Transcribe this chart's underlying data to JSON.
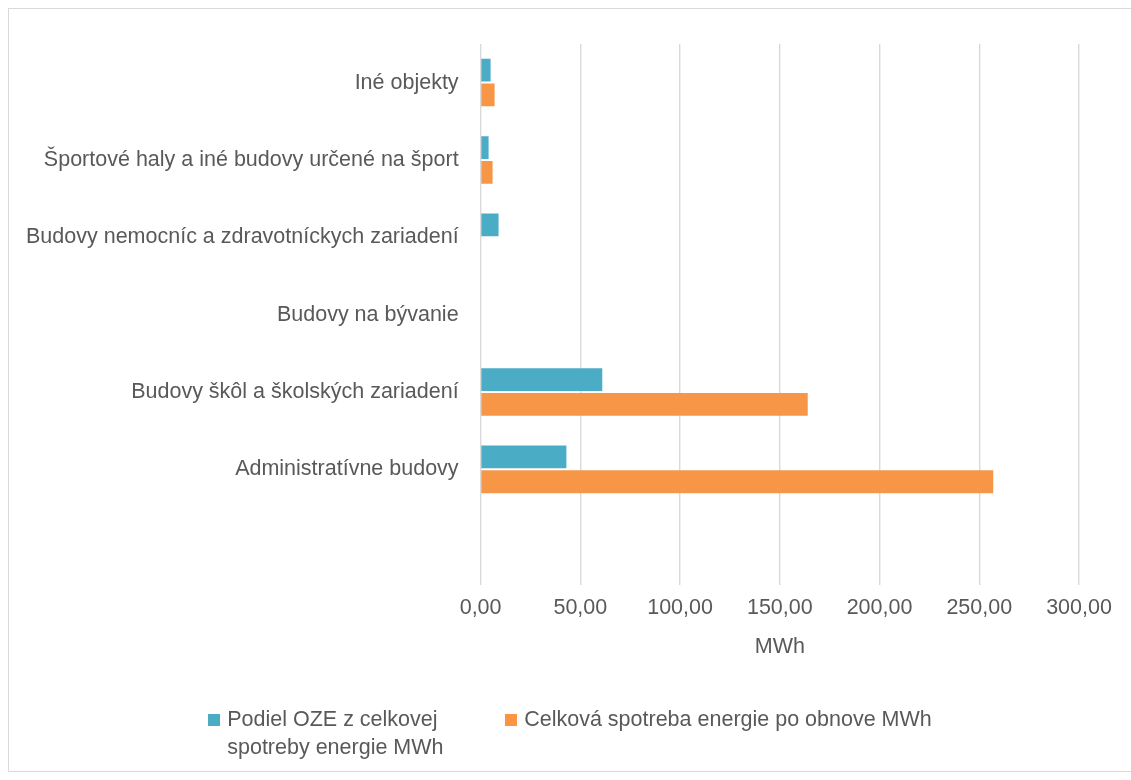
{
  "chart_data": {
    "type": "bar",
    "orientation": "horizontal",
    "categories": [
      "Iné objekty",
      "Športové haly a iné budovy určené na šport",
      "Budovy nemocníc a zdravotníckych zariadení",
      "Budovy na bývanie",
      "Budovy škôl a školských zariadení",
      "Administratívne budovy",
      null
    ],
    "series": [
      {
        "name": "Podiel OZE z celkovej spotreby energie MWh",
        "color": "#4bacc6",
        "values": [
          5,
          4,
          9,
          null,
          61,
          43,
          null
        ]
      },
      {
        "name": "Celková spotreba energie po obnove MWh",
        "color": "#f79646",
        "values": [
          7,
          6,
          null,
          null,
          164,
          257,
          null
        ]
      }
    ],
    "xlabel": "MWh",
    "xlim": [
      0,
      300
    ],
    "xticks": [
      {
        "value": 0,
        "label": "0,00"
      },
      {
        "value": 50,
        "label": "50,00"
      },
      {
        "value": 100,
        "label": "100,00"
      },
      {
        "value": 150,
        "label": "150,00"
      },
      {
        "value": 200,
        "label": "200,00"
      },
      {
        "value": 250,
        "label": "250,00"
      },
      {
        "value": 300,
        "label": "300,00"
      }
    ],
    "grid": "x",
    "legend": "bottom"
  }
}
